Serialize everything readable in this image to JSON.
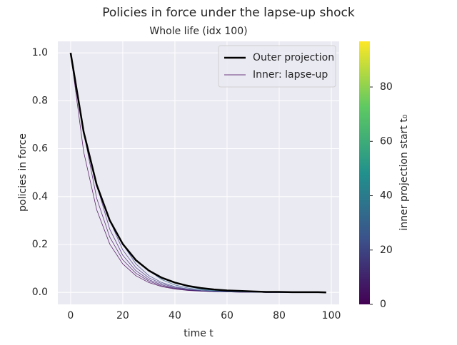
{
  "chart_data": {
    "type": "line",
    "title": "Policies in force under the lapse-up shock",
    "subtitle": "Whole life (idx 100)",
    "x_label": "time t",
    "y_label": "policies in force",
    "x": [
      0,
      5,
      10,
      15,
      20,
      25,
      30,
      35,
      40,
      45,
      50,
      55,
      60,
      65,
      70,
      75,
      80,
      85,
      90,
      95,
      98
    ],
    "series": [
      {
        "name": "Outer projection",
        "color": "#000000",
        "width": 2.5,
        "values": [
          1,
          0.67,
          0.449,
          0.301,
          0.202,
          0.135,
          0.091,
          0.061,
          0.041,
          0.027,
          0.018,
          0.012,
          0.008,
          0.006,
          0.004,
          0.002,
          0.002,
          0.001,
          0.001,
          0.001,
          0
        ]
      },
      {
        "name": "Inner: lapse-up",
        "color": "#440154",
        "width": 0.8,
        "values": [
          1,
          0.587,
          0.345,
          0.202,
          0.119,
          0.07,
          0.041,
          0.024,
          0.014,
          0.008,
          0.005,
          0.003,
          0.002,
          0.001,
          0.001,
          0,
          0,
          0,
          0,
          0,
          0
        ]
      },
      {
        "color": "#471365",
        "width": 0.8,
        "values": [
          null,
          0.67,
          0.393,
          0.231,
          0.136,
          0.08,
          0.047,
          0.027,
          0.016,
          0.009,
          0.006,
          0.003,
          0.002,
          0.001,
          0.001,
          0,
          0,
          0,
          0,
          0,
          0
        ]
      },
      {
        "color": "#482475",
        "width": 0.8,
        "values": [
          null,
          null,
          0.449,
          0.264,
          0.155,
          0.091,
          0.053,
          0.031,
          0.018,
          0.011,
          0.006,
          0.004,
          0.002,
          0.001,
          0.001,
          0,
          0,
          0,
          0,
          0,
          0
        ]
      },
      {
        "color": "#463480",
        "width": 0.8,
        "values": [
          null,
          null,
          null,
          0.301,
          0.177,
          0.104,
          0.061,
          0.036,
          0.021,
          0.012,
          0.007,
          0.004,
          0.003,
          0.002,
          0.001,
          0,
          0,
          0,
          0,
          0,
          0
        ]
      },
      {
        "color": "#414487",
        "width": 0.8,
        "values": [
          null,
          null,
          null,
          null,
          0.202,
          0.119,
          0.07,
          0.041,
          0.024,
          0.014,
          0.008,
          0.005,
          0.003,
          0.002,
          0.001,
          0,
          0,
          0,
          0,
          0,
          0
        ]
      },
      {
        "color": "#355f8d",
        "width": 0.8,
        "values": [
          null,
          null,
          null,
          null,
          null,
          null,
          0.091,
          0.053,
          0.031,
          0.018,
          0.011,
          0.006,
          0.004,
          0.002,
          0.001,
          0,
          0,
          0,
          0,
          0,
          0
        ]
      },
      {
        "color": "#2a788e",
        "width": 0.8,
        "values": [
          null,
          null,
          null,
          null,
          null,
          null,
          null,
          null,
          0.041,
          0.024,
          0.014,
          0.008,
          0.005,
          0.003,
          0.002,
          0.001,
          0,
          0,
          0,
          0,
          0
        ]
      },
      {
        "color": "#22a884",
        "width": 0.8,
        "values": [
          null,
          null,
          null,
          null,
          null,
          null,
          null,
          null,
          null,
          null,
          null,
          null,
          0.008,
          0.005,
          0.003,
          0.002,
          0.001,
          0.001,
          0,
          0,
          0
        ]
      }
    ],
    "xlim": [
      -4.9,
      103
    ],
    "xticks": [
      0,
      20,
      40,
      60,
      80,
      100
    ],
    "ylim": [
      -0.05,
      1.048
    ],
    "yticks": [
      {
        "value": 0,
        "label": "0.0"
      },
      {
        "value": 0.2,
        "label": "0.2"
      },
      {
        "value": 0.4,
        "label": "0.4"
      },
      {
        "value": 0.6,
        "label": "0.6"
      },
      {
        "value": 0.8,
        "label": "0.8"
      },
      {
        "value": 1,
        "label": "1.0"
      }
    ],
    "grid": true,
    "legend": "upper right",
    "colorbar": {
      "label": "inner projection start t₀",
      "lim": [
        0,
        96.8
      ],
      "ticks": [
        0,
        20,
        40,
        60,
        80
      ],
      "colors": [
        "#440154",
        "#3b528b",
        "#21918c",
        "#5ec962",
        "#fde725"
      ]
    }
  }
}
